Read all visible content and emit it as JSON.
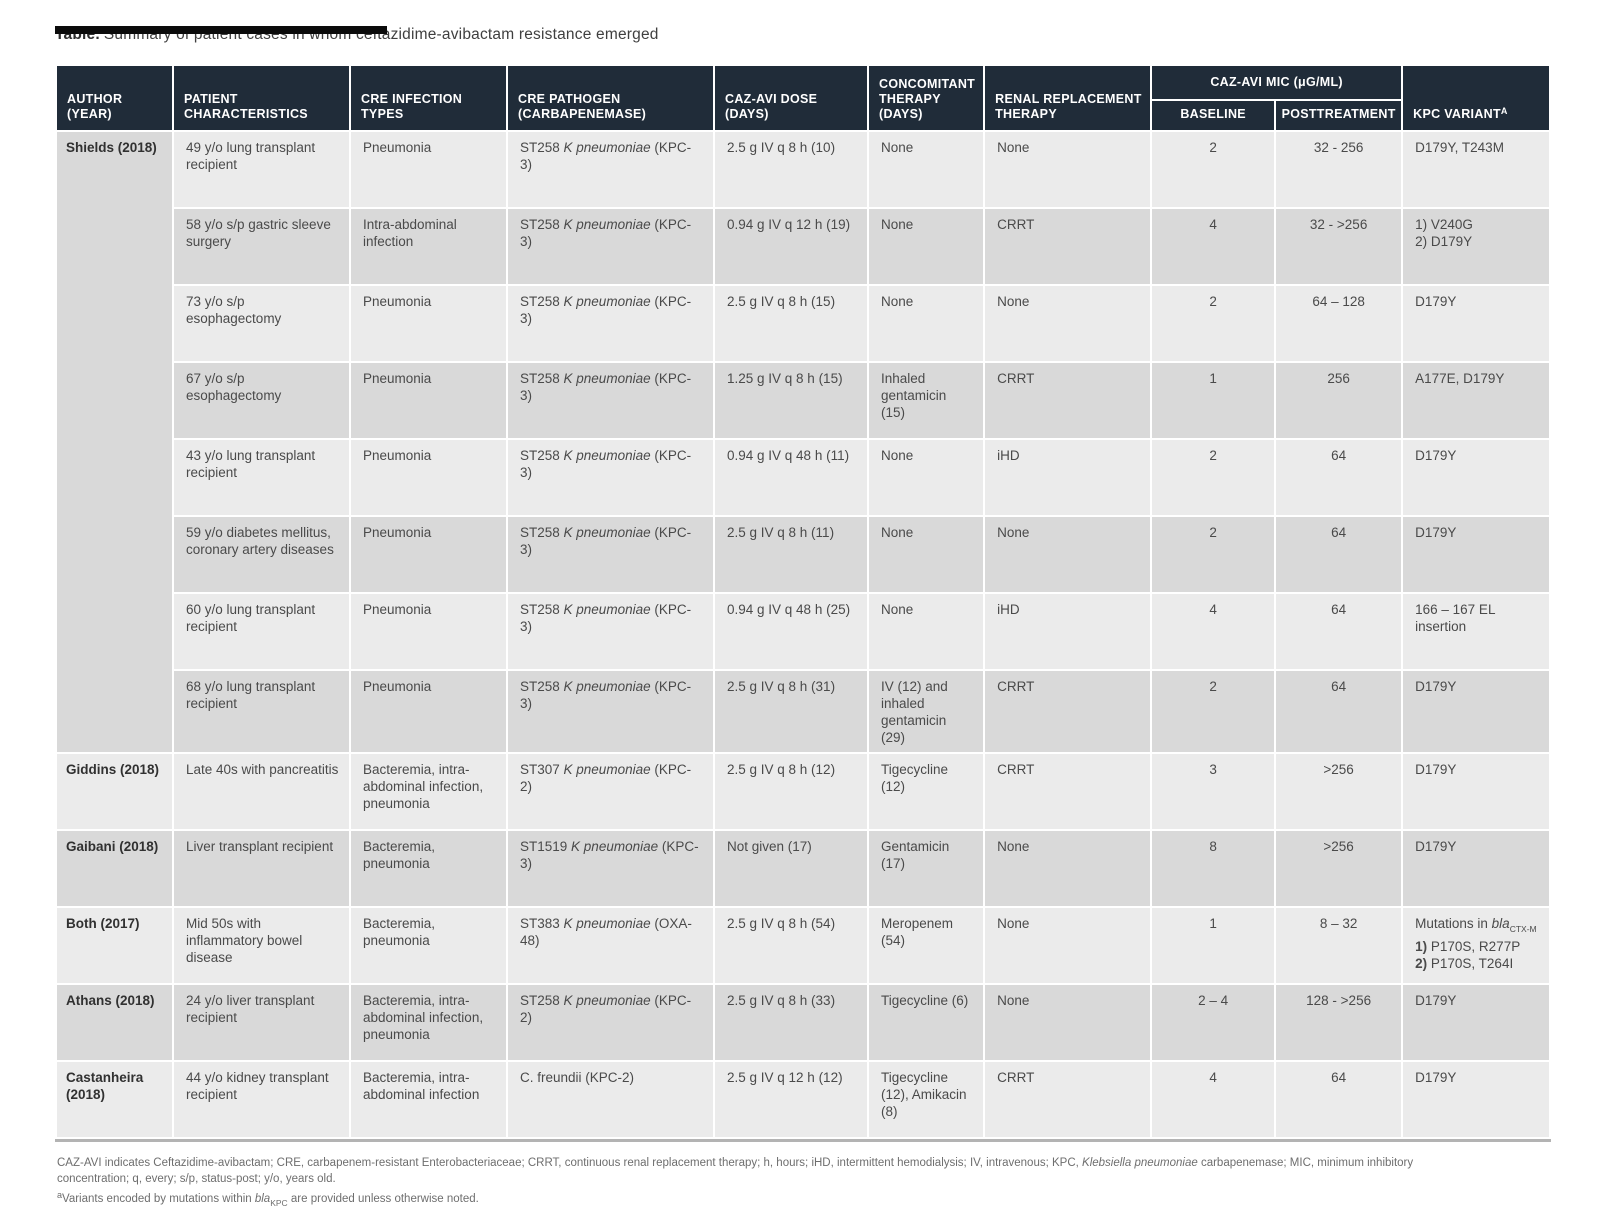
{
  "page": {
    "title_label": "Table.",
    "title_text": "Summary of patient cases in whom ceftazidime-avibactam resistance emerged"
  },
  "colors": {
    "header_bg": "#202c39",
    "header_text": "#ffffff",
    "row_light": "#ebebeb",
    "row_dark": "#d9d9d9",
    "body_text": "#4a4a4a",
    "footnote_text": "#6e6e6e",
    "table_bottom_border": "#b3b3b3",
    "top_bar": "#0b0b0b"
  },
  "table": {
    "headers": {
      "author": "AUTHOR (YEAR)",
      "characteristics": "PATIENT CHARACTERISTICS",
      "infection": "CRE INFECTION TYPES",
      "pathogen": "CRE PATHOGEN (CARBAPENEMASE)",
      "dose": "CAZ-AVI DOSE (DAYS)",
      "concomitant": "CONCOMITANT THERAPY (DAYS)",
      "renal": "RENAL REPLACEMENT THERAPY",
      "mic_group": "CAZ-AVI MIC (μG/ML)",
      "baseline": "BASELINE",
      "posttreatment": "POSTTREATMENT",
      "variant": "KPC VARIANT",
      "variant_sup": "A"
    },
    "rows": [
      {
        "shade": "light",
        "author": "Shields (2018)",
        "author_rowspan": 8,
        "characteristics": "49 y/o lung transplant recipient",
        "infection": "Pneumonia",
        "pathogen": [
          "ST258 ",
          {
            "t": "K pneumoniae",
            "i": true
          },
          " (KPC-3)"
        ],
        "dose": "2.5 g IV q 8 h (10)",
        "concomitant": "None",
        "renal": "None",
        "baseline": "2",
        "posttreatment": "32 - 256",
        "variant": "D179Y, T243M"
      },
      {
        "shade": "dark",
        "characteristics": "58 y/o s/p gastric sleeve surgery",
        "infection": "Intra-abdominal infection",
        "pathogen": [
          "ST258 ",
          {
            "t": "K pneumoniae",
            "i": true
          },
          " (KPC-3)"
        ],
        "dose": "0.94 g IV q 12 h (19)",
        "concomitant": "None",
        "renal": "CRRT",
        "baseline": "4",
        "posttreatment": "32 - >256",
        "variant": "1) V240G\n2) D179Y"
      },
      {
        "shade": "light",
        "characteristics": "73 y/o s/p esophagectomy",
        "infection": "Pneumonia",
        "pathogen": [
          "ST258 ",
          {
            "t": "K pneumoniae",
            "i": true
          },
          " (KPC-3)"
        ],
        "dose": "2.5 g IV q 8 h (15)",
        "concomitant": "None",
        "renal": "None",
        "baseline": "2",
        "posttreatment": "64 – 128",
        "variant": "D179Y"
      },
      {
        "shade": "dark",
        "characteristics": "67 y/o s/p esophagectomy",
        "infection": "Pneumonia",
        "pathogen": [
          "ST258 ",
          {
            "t": "K pneumoniae",
            "i": true
          },
          " (KPC-3)"
        ],
        "dose": "1.25 g IV q 8 h (15)",
        "concomitant": "Inhaled gentamicin (15)",
        "renal": "CRRT",
        "baseline": "1",
        "posttreatment": "256",
        "variant": "A177E, D179Y"
      },
      {
        "shade": "light",
        "characteristics": "43 y/o lung transplant recipient",
        "infection": "Pneumonia",
        "pathogen": [
          "ST258 ",
          {
            "t": "K pneumoniae",
            "i": true
          },
          " (KPC-3)"
        ],
        "dose": "0.94 g IV q 48 h (11)",
        "concomitant": "None",
        "renal": "iHD",
        "baseline": "2",
        "posttreatment": "64",
        "variant": "D179Y"
      },
      {
        "shade": "dark",
        "characteristics": "59 y/o diabetes mellitus, coronary artery diseases",
        "infection": "Pneumonia",
        "pathogen": [
          "ST258 ",
          {
            "t": "K pneumoniae",
            "i": true
          },
          " (KPC-3)"
        ],
        "dose": "2.5 g IV q 8 h (11)",
        "concomitant": "None",
        "renal": "None",
        "baseline": "2",
        "posttreatment": "64",
        "variant": "D179Y"
      },
      {
        "shade": "light",
        "characteristics": "60 y/o lung transplant recipient",
        "infection": "Pneumonia",
        "pathogen": [
          "ST258 ",
          {
            "t": "K pneumoniae",
            "i": true
          },
          " (KPC-3)"
        ],
        "dose": "0.94 g IV q 48 h (25)",
        "concomitant": "None",
        "renal": "iHD",
        "baseline": "4",
        "posttreatment": "64",
        "variant": "166 – 167 EL insertion"
      },
      {
        "shade": "dark",
        "characteristics": "68 y/o lung transplant recipient",
        "infection": "Pneumonia",
        "pathogen": [
          "ST258 ",
          {
            "t": "K pneumoniae",
            "i": true
          },
          " (KPC-3)"
        ],
        "dose": "2.5 g IV q 8 h (31)",
        "concomitant": "IV (12) and inhaled gentamicin (29)",
        "renal": "CRRT",
        "baseline": "2",
        "posttreatment": "64",
        "variant": "D179Y"
      },
      {
        "shade": "light",
        "author": "Giddins (2018)",
        "author_rowspan": 1,
        "characteristics": "Late 40s with pancreatitis",
        "infection": "Bacteremia, intra-abdominal infection, pneumonia",
        "pathogen": [
          "ST307 ",
          {
            "t": "K pneumoniae",
            "i": true
          },
          " (KPC-2)"
        ],
        "dose": "2.5 g IV q 8 h (12)",
        "concomitant": "Tigecycline (12)",
        "renal": "CRRT",
        "baseline": "3",
        "posttreatment": ">256",
        "variant": "D179Y"
      },
      {
        "shade": "dark",
        "author": "Gaibani (2018)",
        "author_rowspan": 1,
        "characteristics": "Liver transplant recipient",
        "infection": "Bacteremia, pneumonia",
        "pathogen": [
          "ST1519 ",
          {
            "t": "K pneumoniae",
            "i": true
          },
          " (KPC-3)"
        ],
        "dose": "Not given (17)",
        "concomitant": "Gentamicin (17)",
        "renal": "None",
        "baseline": "8",
        "posttreatment": ">256",
        "variant": "D179Y"
      },
      {
        "shade": "light",
        "author": "Both (2017)",
        "author_rowspan": 1,
        "characteristics": "Mid 50s with inflammatory bowel disease",
        "infection": "Bacteremia, pneumonia",
        "pathogen": [
          "ST383 ",
          {
            "t": "K pneumoniae",
            "i": true
          },
          " (OXA-48)"
        ],
        "dose": "2.5 g IV q 8 h (54)",
        "concomitant": "Meropenem (54)",
        "renal": "None",
        "baseline": "1",
        "posttreatment": "8 – 32",
        "variant": [
          "Mutations in ",
          {
            "t": "bla",
            "i": true
          },
          {
            "t": "CTX-M",
            "sub": true
          },
          "\n",
          {
            "t": "1)",
            "b": true
          },
          " P170S, R277P",
          "\n",
          {
            "t": "2)",
            "b": true
          },
          " P170S, T264I"
        ]
      },
      {
        "shade": "dark",
        "author": "Athans (2018)",
        "author_rowspan": 1,
        "characteristics": "24 y/o liver transplant recipient",
        "infection": "Bacteremia, intra-abdominal infection, pneumonia",
        "pathogen": [
          "ST258 ",
          {
            "t": "K pneumoniae",
            "i": true
          },
          " (KPC-2)"
        ],
        "dose": "2.5 g IV q 8 h (33)",
        "concomitant": "Tigecycline (6)",
        "renal": "None",
        "baseline": "2 – 4",
        "posttreatment": "128 - >256",
        "variant": "D179Y"
      },
      {
        "shade": "light",
        "author": "Castanheira (2018)",
        "author_rowspan": 1,
        "characteristics": "44 y/o kidney transplant recipient",
        "infection": "Bacteremia, intra-abdominal infection",
        "pathogen": "C. freundii (KPC-2)",
        "dose": "2.5 g IV q 12 h (12)",
        "concomitant": "Tigecycline (12), Amikacin (8)",
        "renal": "CRRT",
        "baseline": "4",
        "posttreatment": "64",
        "variant": "D179Y"
      }
    ]
  },
  "footnotes": {
    "line1": [
      "CAZ-AVI indicates Ceftazidime-avibactam; CRE, carbapenem-resistant Enterobacteriaceae; CRRT, continuous renal replacement therapy; h, hours; iHD, intermittent hemodialysis; IV, intravenous; KPC, ",
      {
        "t": "Klebsiella pneumoniae",
        "i": true
      },
      " carbapenemase; MIC, minimum inhibitory",
      "\n",
      "concentration; q, every; s/p, status-post; y/o, years old."
    ],
    "line2": [
      {
        "t": "a",
        "sup": true
      },
      "Variants encoded by mutations within ",
      {
        "t": "bla",
        "i": true
      },
      {
        "t": "KPC",
        "sub": true
      },
      " are provided unless otherwise noted."
    ]
  }
}
